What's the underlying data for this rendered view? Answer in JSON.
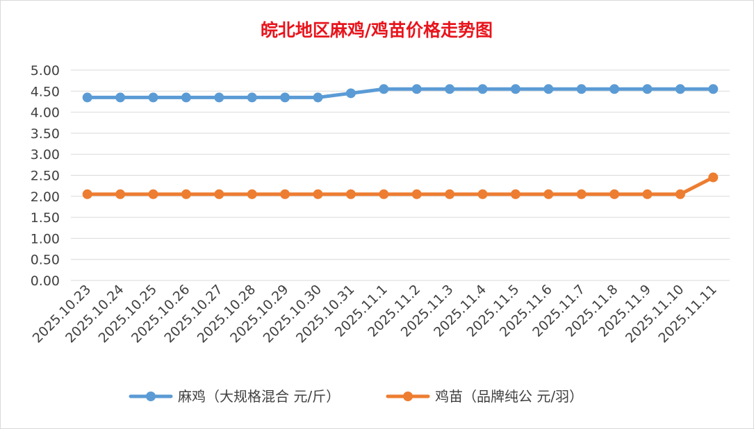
{
  "chart_data": {
    "type": "line",
    "title": "皖北地区麻鸡/鸡苗价格走势图",
    "categories": [
      "2025.10.23",
      "2025.10.24",
      "2025.10.25",
      "2025.10.26",
      "2025.10.27",
      "2025.10.28",
      "2025.10.29",
      "2025.10.30",
      "2025.10.31",
      "2025.11.1",
      "2025.11.2",
      "2025.11.3",
      "2025.11.4",
      "2025.11.5",
      "2025.11.6",
      "2025.11.7",
      "2025.11.8",
      "2025.11.9",
      "2025.11.10",
      "2025.11.11"
    ],
    "series": [
      {
        "name": "麻鸡（大规格混合 元/斤）",
        "color": "#5b9bd5",
        "values": [
          4.35,
          4.35,
          4.35,
          4.35,
          4.35,
          4.35,
          4.35,
          4.35,
          4.45,
          4.55,
          4.55,
          4.55,
          4.55,
          4.55,
          4.55,
          4.55,
          4.55,
          4.55,
          4.55,
          4.55
        ]
      },
      {
        "name": "鸡苗（品牌纯公 元/羽）",
        "color": "#ed7d31",
        "values": [
          2.05,
          2.05,
          2.05,
          2.05,
          2.05,
          2.05,
          2.05,
          2.05,
          2.05,
          2.05,
          2.05,
          2.05,
          2.05,
          2.05,
          2.05,
          2.05,
          2.05,
          2.05,
          2.05,
          2.45
        ]
      }
    ],
    "yticks": [
      "0.00",
      "0.50",
      "1.00",
      "1.50",
      "2.00",
      "2.50",
      "3.00",
      "3.50",
      "4.00",
      "4.50",
      "5.00"
    ],
    "ylim": [
      0,
      5
    ],
    "grid": true,
    "legend": "bottom"
  }
}
